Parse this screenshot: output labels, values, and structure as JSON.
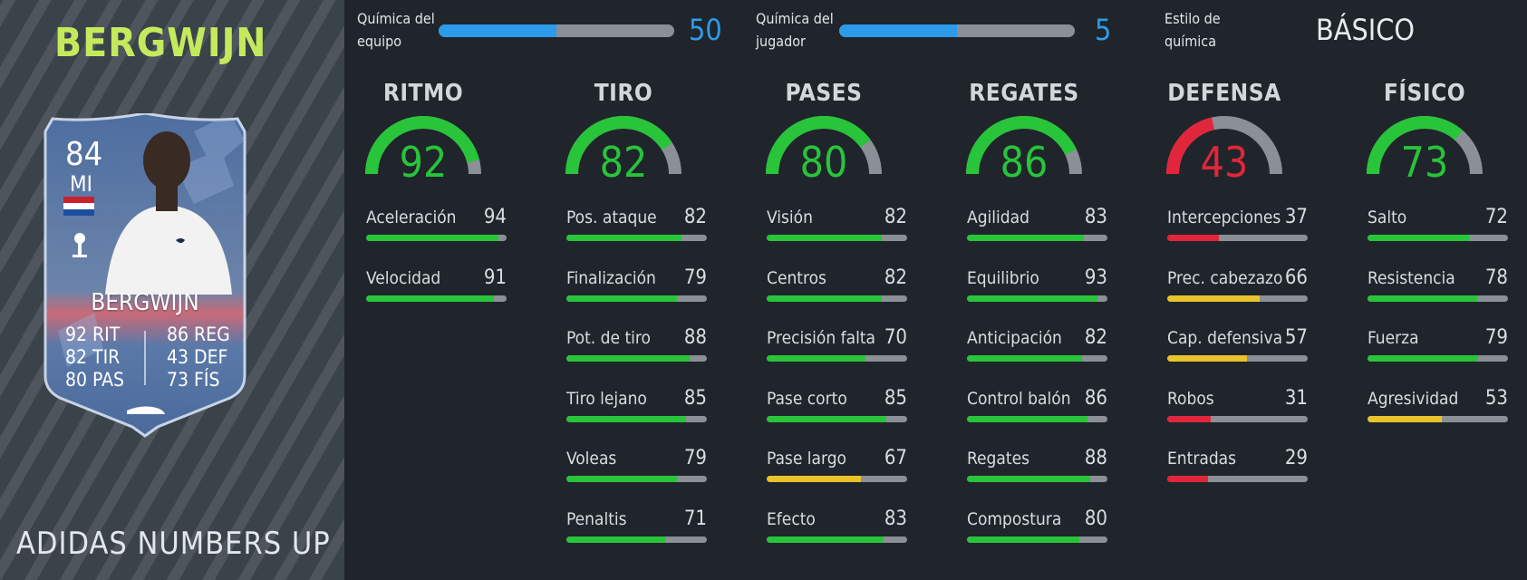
{
  "player": {
    "name": "BERGWIJN",
    "promo": "ADIDAS NUMBERS UP"
  },
  "card": {
    "rating": "84",
    "position": "MI",
    "name": "BERGWIJN",
    "nation_flag": "netherlands-flag-icon",
    "club_badge": "tottenham-badge-icon",
    "boot_icon": "boot-icon",
    "left_stats": [
      {
        "value": "92",
        "label": "RIT"
      },
      {
        "value": "82",
        "label": "TIR"
      },
      {
        "value": "80",
        "label": "PAS"
      }
    ],
    "right_stats": [
      {
        "value": "86",
        "label": "REG"
      },
      {
        "value": "43",
        "label": "DEF"
      },
      {
        "value": "73",
        "label": "FÍS"
      }
    ]
  },
  "chemistry": {
    "team": {
      "label_line1": "Química del",
      "label_line2": "equipo",
      "value": "50",
      "max": 100
    },
    "player": {
      "label_line1": "Química del",
      "label_line2": "jugador",
      "value": "5",
      "max": 10
    },
    "style": {
      "label_line1": "Estilo de",
      "label_line2": "química",
      "value": "BÁSICO"
    }
  },
  "colors": {
    "green": "#28c43a",
    "yellow": "#e9c22c",
    "red": "#e1263b",
    "track": "#8a9096",
    "blue": "#2c9bea",
    "name_green": "#c4ea5c"
  },
  "categories": [
    {
      "title": "RITMO",
      "value": "92",
      "stats": [
        {
          "name": "Aceleración",
          "value": "94"
        },
        {
          "name": "Velocidad",
          "value": "91"
        }
      ]
    },
    {
      "title": "TIRO",
      "value": "82",
      "stats": [
        {
          "name": "Pos. ataque",
          "value": "82"
        },
        {
          "name": "Finalización",
          "value": "79"
        },
        {
          "name": "Pot. de tiro",
          "value": "88"
        },
        {
          "name": "Tiro lejano",
          "value": "85"
        },
        {
          "name": "Voleas",
          "value": "79"
        },
        {
          "name": "Penaltis",
          "value": "71"
        }
      ]
    },
    {
      "title": "PASES",
      "value": "80",
      "stats": [
        {
          "name": "Visión",
          "value": "82"
        },
        {
          "name": "Centros",
          "value": "82"
        },
        {
          "name": "Precisión falta",
          "value": "70"
        },
        {
          "name": "Pase corto",
          "value": "85"
        },
        {
          "name": "Pase largo",
          "value": "67"
        },
        {
          "name": "Efecto",
          "value": "83"
        }
      ]
    },
    {
      "title": "REGATES",
      "value": "86",
      "stats": [
        {
          "name": "Agilidad",
          "value": "83"
        },
        {
          "name": "Equilibrio",
          "value": "93"
        },
        {
          "name": "Anticipación",
          "value": "82"
        },
        {
          "name": "Control balón",
          "value": "86"
        },
        {
          "name": "Regates",
          "value": "88"
        },
        {
          "name": "Compostura",
          "value": "80"
        }
      ]
    },
    {
      "title": "DEFENSA",
      "value": "43",
      "stats": [
        {
          "name": "Intercepciones",
          "value": "37"
        },
        {
          "name": "Prec. cabezazo",
          "value": "66"
        },
        {
          "name": "Cap. defensiva",
          "value": "57"
        },
        {
          "name": "Robos",
          "value": "31"
        },
        {
          "name": "Entradas",
          "value": "29"
        }
      ]
    },
    {
      "title": "FÍSICO",
      "value": "73",
      "stats": [
        {
          "name": "Salto",
          "value": "72"
        },
        {
          "name": "Resistencia",
          "value": "78"
        },
        {
          "name": "Fuerza",
          "value": "79"
        },
        {
          "name": "Agresividad",
          "value": "53"
        }
      ]
    }
  ]
}
